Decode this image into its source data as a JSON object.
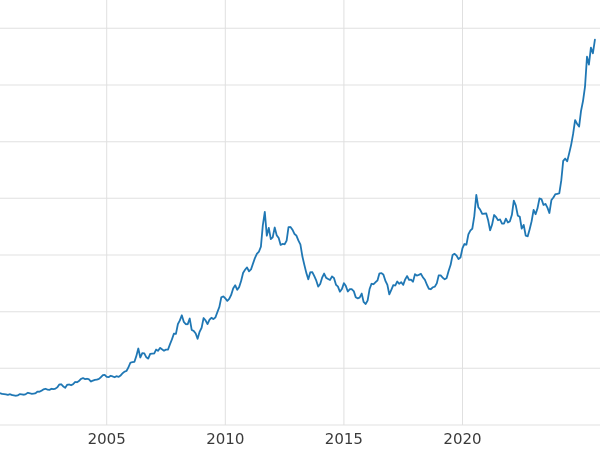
{
  "chart_data": {
    "type": "line",
    "title": "",
    "xlabel": "",
    "ylabel": "",
    "legend": "none",
    "grid": true,
    "line_color": "#1f77b4",
    "line_width": 1.8,
    "grid_color": "#e0e0e0",
    "tick_label_color": "#3a3a3a",
    "background_color": "#ffffff",
    "xlim": [
      2000.5,
      2025.8
    ],
    "ylim": [
      0,
      3750
    ],
    "ytick_interval": 500,
    "x_ticks": [
      {
        "year": 2005,
        "label": "2005"
      },
      {
        "year": 2010,
        "label": "2010"
      },
      {
        "year": 2015,
        "label": "2015"
      },
      {
        "year": 2020,
        "label": "2020"
      }
    ],
    "series_start_year": 2000.5,
    "points_per_year": 12,
    "values": [
      281,
      274,
      273,
      270,
      266,
      272,
      265,
      261,
      258,
      261,
      273,
      270,
      267,
      272,
      284,
      281,
      275,
      277,
      281,
      295,
      294,
      303,
      314,
      319,
      312,
      310,
      319,
      317,
      320,
      333,
      357,
      359,
      341,
      328,
      355,
      357,
      351,
      360,
      379,
      378,
      389,
      407,
      414,
      405,
      408,
      403,
      384,
      392,
      398,
      401,
      406,
      421,
      439,
      442,
      424,
      423,
      434,
      429,
      422,
      431,
      424,
      437,
      456,
      470,
      477,
      510,
      550,
      555,
      557,
      611,
      675,
      596,
      634,
      632,
      599,
      586,
      627,
      630,
      631,
      665,
      655,
      680,
      667,
      656,
      665,
      665,
      713,
      755,
      806,
      804,
      890,
      922,
      968,
      910,
      889,
      889,
      940,
      839,
      830,
      807,
      761,
      822,
      858,
      943,
      924,
      890,
      929,
      946,
      934,
      949,
      996,
      1043,
      1127,
      1135,
      1118,
      1095,
      1113,
      1149,
      1205,
      1233,
      1193,
      1216,
      1271,
      1342,
      1370,
      1391,
      1356,
      1373,
      1424,
      1473,
      1511,
      1529,
      1573,
      1760,
      1880,
      1670,
      1739,
      1640,
      1656,
      1743,
      1674,
      1650,
      1589,
      1598,
      1594,
      1626,
      1745,
      1747,
      1722,
      1685,
      1671,
      1628,
      1593,
      1487,
      1414,
      1343,
      1286,
      1347,
      1348,
      1316,
      1276,
      1221,
      1244,
      1300,
      1336,
      1299,
      1288,
      1279,
      1311,
      1296,
      1237,
      1222,
      1176,
      1200,
      1251,
      1227,
      1178,
      1198,
      1198,
      1181,
      1128,
      1117,
      1125,
      1159,
      1086,
      1068,
      1098,
      1200,
      1246,
      1242,
      1260,
      1276,
      1337,
      1340,
      1327,
      1272,
      1236,
      1152,
      1192,
      1234,
      1231,
      1266,
      1246,
      1260,
      1236,
      1283,
      1314,
      1280,
      1282,
      1264,
      1331,
      1318,
      1325,
      1334,
      1303,
      1281,
      1238,
      1202,
      1198,
      1215,
      1220,
      1250,
      1320,
      1320,
      1300,
      1286,
      1296,
      1359,
      1413,
      1500,
      1511,
      1495,
      1464,
      1479,
      1561,
      1597,
      1591,
      1683,
      1716,
      1732,
      1843,
      2030,
      1922,
      1900,
      1863,
      1864,
      1867,
      1808,
      1718,
      1768,
      1853,
      1835,
      1807,
      1814,
      1777,
      1777,
      1820,
      1787,
      1797,
      1856,
      1980,
      1937,
      1848,
      1837,
      1733,
      1766,
      1671,
      1665,
      1725,
      1797,
      1898,
      1860,
      1912,
      1999,
      1992,
      1942,
      1951,
      1918,
      1871,
      1984,
      2007,
      2036,
      2039,
      2044,
      2160,
      2330,
      2351,
      2327,
      2398,
      2470,
      2568,
      2690,
      2657,
      2633,
      2770,
      2858,
      2984,
      3250,
      3180,
      3330,
      3280,
      3400
    ]
  }
}
